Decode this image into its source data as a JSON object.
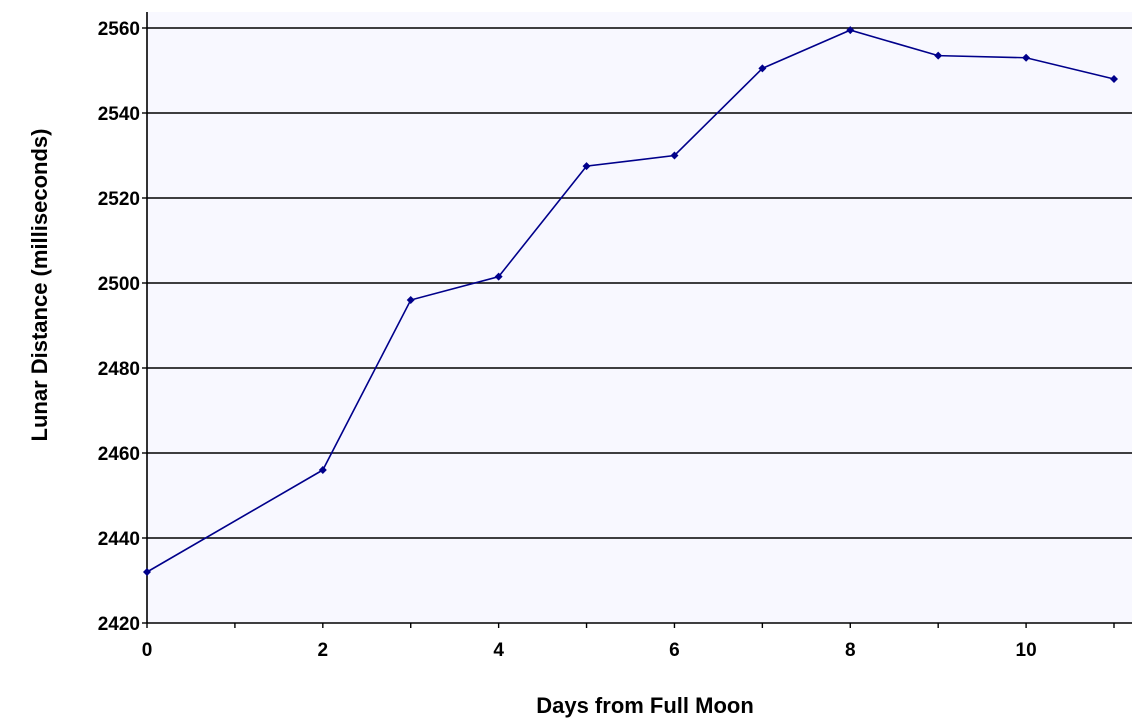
{
  "chart_data": {
    "type": "line",
    "title": "",
    "xlabel": "Days from Full Moon",
    "ylabel": "Lunar Distance (milliseconds)",
    "x": [
      0,
      2,
      3,
      4,
      5,
      6,
      7,
      8,
      9,
      10,
      11
    ],
    "series": [
      {
        "values": [
          2432,
          2456,
          2496,
          2501.5,
          2527.5,
          2530,
          2550.5,
          2559.5,
          2553.5,
          2553,
          2548
        ]
      }
    ],
    "xlim": [
      0,
      11
    ],
    "ylim": [
      2420,
      2560
    ],
    "xticks": [
      "0",
      "2",
      "4",
      "6",
      "8",
      "10"
    ],
    "yticks": [
      "2420",
      "2440",
      "2460",
      "2480",
      "2500",
      "2520",
      "2540",
      "2560"
    ],
    "grid": "horizontal",
    "legend": "none",
    "colors": {
      "plot_background": "#F8F8FF",
      "series_line": "#00008B",
      "gridline": "#000000"
    }
  }
}
